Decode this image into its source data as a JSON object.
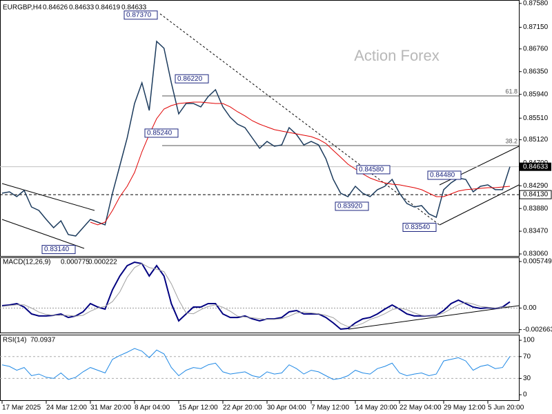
{
  "chart_data": {
    "type": "line",
    "title": "EURGBP,H4",
    "ohlc": [
      0.84626,
      0.84633,
      0.84619,
      0.84633
    ],
    "watermark": "Action Forex",
    "series": [
      {
        "color": "#1b3a5c",
        "values": [
          0.84156,
          0.84181,
          0.84094,
          0.84206,
          0.83907,
          0.83845,
          0.83683,
          0.83534,
          0.83658,
          0.83409,
          0.83384,
          0.83534,
          0.83683,
          0.83633,
          0.83584,
          0.84156,
          0.84654,
          0.85152,
          0.85775,
          0.86148,
          0.8565,
          0.86895,
          0.86771,
          0.86148,
          0.85588,
          0.85775,
          0.85775,
          0.85713,
          0.85899,
          0.86024,
          0.85713,
          0.85526,
          0.85401,
          0.85339,
          0.85152,
          0.84966,
          0.8509,
          0.85003,
          0.85028,
          0.85339,
          0.85215,
          0.85028,
          0.8509,
          0.85028,
          0.84779,
          0.84405,
          0.84156,
          0.84094,
          0.84281,
          0.84156,
          0.84094,
          0.84219,
          0.84281,
          0.84405,
          0.84156,
          0.8397,
          0.83907,
          0.83932,
          0.83783,
          0.83721,
          0.84219,
          0.84343,
          0.8443,
          0.84405,
          0.84181,
          0.84281,
          0.84306,
          0.84219,
          0.84219,
          0.84633
        ]
      },
      {
        "color": "#e00000",
        "values": [
          null,
          null,
          null,
          null,
          null,
          null,
          null,
          null,
          null,
          null,
          null,
          null,
          0.83633,
          0.83584,
          0.83633,
          0.83845,
          0.84094,
          0.84281,
          0.8453,
          0.84903,
          0.85215,
          0.85501,
          0.85675,
          0.85737,
          0.85775,
          0.85787,
          0.858,
          0.858,
          0.85787,
          0.85775,
          0.85775,
          0.85713,
          0.85625,
          0.85551,
          0.85463,
          0.85401,
          0.85351,
          0.85302,
          0.85277,
          0.85252,
          0.85227,
          0.85202,
          0.85177,
          0.85127,
          0.85053,
          0.84928,
          0.84804,
          0.84679,
          0.84592,
          0.84505,
          0.8443,
          0.8438,
          0.84343,
          0.84318,
          0.84306,
          0.84281,
          0.84256,
          0.84219,
          0.84156,
          0.84094,
          0.84094,
          0.84144,
          0.84194,
          0.84219,
          0.84231,
          0.84243,
          0.84256,
          0.84256,
          0.84268,
          0.84281
        ]
      }
    ],
    "ylim": [
      0.83023,
      0.87642
    ],
    "yticks": [
      {
        "value": 0.8758,
        "label": "0.87580"
      },
      {
        "value": 0.8715,
        "label": "0.87150"
      },
      {
        "value": 0.8676,
        "label": "0.86760"
      },
      {
        "value": 0.8635,
        "label": "0.86350"
      },
      {
        "value": 0.8594,
        "label": "0.85940"
      },
      {
        "value": 0.8551,
        "label": "0.85510"
      },
      {
        "value": 0.8512,
        "label": "0.85120"
      },
      {
        "value": 0.847,
        "label": "0.84700"
      },
      {
        "value": 0.8429,
        "label": "0.84290"
      },
      {
        "value": 0.8388,
        "label": "0.83880"
      },
      {
        "value": 0.8347,
        "label": "0.83470"
      },
      {
        "value": 0.8306,
        "label": "0.83060"
      }
    ],
    "xticks": [
      {
        "value": 0,
        "label": "17 Mar 2025"
      },
      {
        "value": 6,
        "label": "24 Mar 12:00"
      },
      {
        "value": 12,
        "label": "31 Mar 20:00"
      },
      {
        "value": 18,
        "label": "8 Apr 04:00"
      },
      {
        "value": 24,
        "label": "15 Apr 12:00"
      },
      {
        "value": 30,
        "label": "22 Apr 20:00"
      },
      {
        "value": 36,
        "label": "30 Apr 04:00"
      },
      {
        "value": 42,
        "label": "7 May 12:00"
      },
      {
        "value": 48,
        "label": "14 May 20:00"
      },
      {
        "value": 54,
        "label": "22 May 04:00"
      },
      {
        "value": 60,
        "label": "29 May 12:00"
      },
      {
        "value": 66,
        "label": "5 Jun 20:00"
      }
    ],
    "price_labels": [
      {
        "value": 0.8737,
        "label": "0.87370"
      },
      {
        "value": 0.8622,
        "label": "0.86220"
      },
      {
        "value": 0.8524,
        "label": "0.85240"
      },
      {
        "value": 0.8458,
        "label": "0.84580"
      },
      {
        "value": 0.8392,
        "label": "0.83920"
      },
      {
        "value": 0.8448,
        "label": "0.84480"
      },
      {
        "value": 0.8354,
        "label": "0.83540"
      },
      {
        "value": 0.8314,
        "label": "0.83140"
      }
    ],
    "last_price": {
      "value": 0.84633,
      "label": "0.84633"
    },
    "support": {
      "value": 0.8413,
      "label": "0.84130"
    },
    "fib": [
      {
        "level": 61.8,
        "value": 0.85912
      },
      {
        "level": 38.2,
        "value": 0.85015
      }
    ],
    "macd": {
      "title": "MACD(12,26,9)",
      "ylim": [
        -0.00303,
        0.00626
      ],
      "yticks": [
        0.005749,
        {
          "value": 0,
          "label": "0.00"
        },
        -0.002663
      ],
      "series": [
        {
          "color": "#000080",
          "values": [
            0.00029,
            0.00038,
            0.00055,
            0.00012,
            -0.00073,
            -0.00098,
            -0.00098,
            -0.0009,
            -0.00073,
            -0.00116,
            -0.00098,
            -0.00047,
            0.00055,
            0.00012,
            -0.00013,
            0.00225,
            0.00396,
            0.00524,
            0.00566,
            0.00549,
            0.00396,
            0.00524,
            0.00396,
            0.00055,
            -0.00158,
            -0.00073,
            0.00012,
            0.00012,
            0.00055,
            0.00055,
            -0.00073,
            -0.00116,
            -0.00116,
            -0.00098,
            -0.00133,
            -0.00158,
            -0.00133,
            -0.00133,
            -0.00116,
            -0.00047,
            -0.0003,
            -0.00073,
            -0.00073,
            -0.00073,
            -0.00116,
            -0.00184,
            -0.0026,
            -0.00252,
            -0.00184,
            -0.00133,
            -0.00116,
            -0.00073,
            -0.00013,
            0.00038,
            -0.00013,
            -0.00073,
            -0.00098,
            -0.00098,
            -0.00098,
            -0.0009,
            -0.0003,
            0.00055,
            0.00098,
            0.00055,
            0.00012,
            -5e-05,
            4e-05,
            -5e-05,
            0.00012,
            0.000775
          ]
        },
        {
          "color": "#a0a0a0",
          "values": [
            0.0002,
            0.0003,
            0.0004,
            0.0004,
            0.0,
            -0.0005,
            -0.0008,
            -0.0009,
            -0.0009,
            -0.0009,
            -0.001,
            -0.0009,
            -0.0004,
            0.0,
            0.0002,
            0.0008,
            0.002,
            0.0038,
            0.005,
            0.0055,
            0.005,
            0.0048,
            0.0045,
            0.003,
            0.001,
            -0.0006,
            -0.0007,
            -0.0002,
            0.0002,
            0.0004,
            0.0001,
            -0.0004,
            -0.001,
            -0.0011,
            -0.0012,
            -0.0013,
            -0.0014,
            -0.0014,
            -0.0013,
            -0.001,
            -0.0006,
            -0.0005,
            -0.0006,
            -0.0007,
            -0.0009,
            -0.0012,
            -0.0019,
            -0.0023,
            -0.0022,
            -0.0019,
            -0.0014,
            -0.0011,
            -0.0007,
            -0.0002,
            0.0,
            -0.0002,
            -0.0006,
            -0.0009,
            -0.001,
            -0.0009,
            -0.0006,
            -0.0001,
            0.0004,
            0.0007,
            0.0005,
            0.0002,
            0.0001,
            0.0,
            0.0001,
            0.000222
          ]
        }
      ]
    },
    "rsi": {
      "title": "RSI(14)",
      "ylim": [
        -10,
        109
      ],
      "yticks": [
        100,
        70,
        30,
        0
      ],
      "levels": [
        70,
        30
      ],
      "color": "#1e88e5",
      "values": [
        55,
        52,
        45,
        50,
        35,
        38,
        32,
        30,
        40,
        28,
        32,
        42,
        50,
        45,
        40,
        65,
        72,
        78,
        85,
        80,
        68,
        82,
        75,
        50,
        35,
        45,
        50,
        48,
        55,
        58,
        42,
        38,
        40,
        42,
        35,
        32,
        42,
        38,
        40,
        55,
        48,
        38,
        45,
        42,
        35,
        28,
        30,
        35,
        45,
        40,
        38,
        48,
        52,
        58,
        40,
        35,
        38,
        40,
        35,
        38,
        62,
        65,
        68,
        62,
        45,
        52,
        55,
        48,
        50,
        70.0937
      ]
    }
  }
}
